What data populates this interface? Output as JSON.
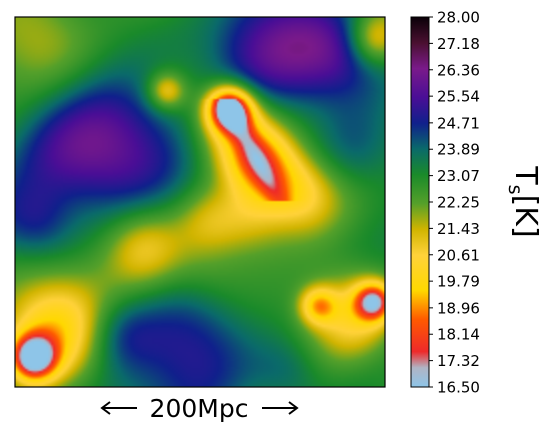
{
  "chart_data": {
    "type": "heatmap",
    "title": "",
    "scale_bar": "200Mpc",
    "colorbar": {
      "label_main": "T",
      "label_sub": "s",
      "label_unit": "[K]",
      "min": 16.5,
      "max": 28.0,
      "ticks": [
        "28.00",
        "27.18",
        "26.36",
        "25.54",
        "24.71",
        "23.89",
        "23.07",
        "22.25",
        "21.43",
        "20.61",
        "19.79",
        "18.96",
        "18.14",
        "17.32",
        "16.50"
      ],
      "colormap_stops": [
        {
          "v": 16.5,
          "c": "#8ec5e8"
        },
        {
          "v": 17.1,
          "c": "#b0b4c4"
        },
        {
          "v": 17.6,
          "c": "#ee2a2a"
        },
        {
          "v": 18.6,
          "c": "#ff5a00"
        },
        {
          "v": 19.5,
          "c": "#ffd800"
        },
        {
          "v": 20.6,
          "c": "#ffd23a"
        },
        {
          "v": 21.4,
          "c": "#d0b400"
        },
        {
          "v": 22.2,
          "c": "#55a02a"
        },
        {
          "v": 23.1,
          "c": "#1a8a2a"
        },
        {
          "v": 23.9,
          "c": "#0a6a6a"
        },
        {
          "v": 24.7,
          "c": "#10208c"
        },
        {
          "v": 25.5,
          "c": "#4a0e96"
        },
        {
          "v": 26.4,
          "c": "#7a1a8a"
        },
        {
          "v": 27.2,
          "c": "#4a1030"
        },
        {
          "v": 28.0,
          "c": "#0a0008"
        }
      ]
    },
    "background_value": 23.0,
    "features": [
      {
        "x": 0.58,
        "y": 0.25,
        "r": 0.06,
        "value": 16.7
      },
      {
        "x": 0.6,
        "y": 0.3,
        "r": 0.11,
        "value": 20.4
      },
      {
        "x": 0.65,
        "y": 0.38,
        "r": 0.09,
        "value": 20.6
      },
      {
        "x": 0.7,
        "y": 0.44,
        "r": 0.1,
        "value": 21.0
      },
      {
        "x": 0.78,
        "y": 0.48,
        "r": 0.1,
        "value": 21.4
      },
      {
        "x": 0.63,
        "y": 0.55,
        "r": 0.1,
        "value": 21.4
      },
      {
        "x": 0.52,
        "y": 0.55,
        "r": 0.09,
        "value": 21.6
      },
      {
        "x": 0.35,
        "y": 0.62,
        "r": 0.11,
        "value": 20.8
      },
      {
        "x": 0.52,
        "y": 0.68,
        "r": 0.12,
        "value": 21.6
      },
      {
        "x": 0.05,
        "y": 0.92,
        "r": 0.06,
        "value": 17.0
      },
      {
        "x": 0.1,
        "y": 0.85,
        "r": 0.14,
        "value": 20.0
      },
      {
        "x": 0.97,
        "y": 0.77,
        "r": 0.05,
        "value": 18.0
      },
      {
        "x": 0.92,
        "y": 0.8,
        "r": 0.12,
        "value": 20.2
      },
      {
        "x": 0.82,
        "y": 0.78,
        "r": 0.05,
        "value": 20.0
      },
      {
        "x": 0.07,
        "y": 0.05,
        "r": 0.15,
        "value": 21.0
      },
      {
        "x": 0.97,
        "y": 0.06,
        "r": 0.07,
        "value": 20.8
      },
      {
        "x": 0.41,
        "y": 0.2,
        "r": 0.05,
        "value": 20.6
      },
      {
        "x": 0.3,
        "y": 0.35,
        "r": 0.17,
        "value": 26.0
      },
      {
        "x": 0.15,
        "y": 0.35,
        "r": 0.15,
        "value": 24.6
      },
      {
        "x": 0.7,
        "y": 0.06,
        "r": 0.17,
        "value": 25.3
      },
      {
        "x": 0.88,
        "y": 0.1,
        "r": 0.13,
        "value": 25.2
      },
      {
        "x": 0.5,
        "y": 0.9,
        "r": 0.17,
        "value": 25.2
      },
      {
        "x": 0.28,
        "y": 0.85,
        "r": 0.1,
        "value": 24.5
      },
      {
        "x": 0.06,
        "y": 0.56,
        "r": 0.1,
        "value": 24.3
      },
      {
        "x": 0.92,
        "y": 0.37,
        "r": 0.12,
        "value": 24.3
      },
      {
        "x": 0.74,
        "y": 0.96,
        "r": 0.1,
        "value": 24.2
      }
    ]
  }
}
